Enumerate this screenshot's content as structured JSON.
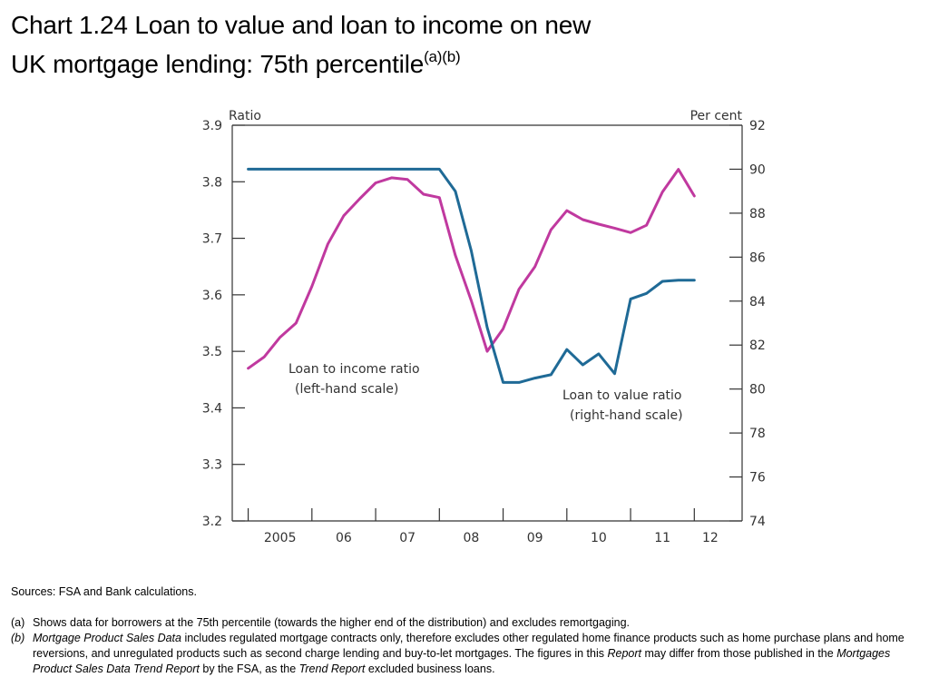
{
  "title": {
    "line1": "Chart 1.24  Loan to value and loan to income on new",
    "line2": "UK mortgage lending:  75th percentile",
    "superscript": "(a)(b)"
  },
  "chart_data": {
    "type": "line",
    "left_axis": {
      "title": "Ratio",
      "ylim": [
        3.2,
        3.9
      ],
      "ticks": [
        "3.2",
        "3.3",
        "3.4",
        "3.5",
        "3.6",
        "3.7",
        "3.8",
        "3.9"
      ]
    },
    "right_axis": {
      "title": "Per cent",
      "ylim": [
        74,
        92
      ],
      "ticks": [
        "74",
        "76",
        "78",
        "80",
        "82",
        "84",
        "86",
        "88",
        "90",
        "92"
      ]
    },
    "x_axis": {
      "range": [
        2004.75,
        2012.75
      ],
      "labels": [
        {
          "x": 2005.5,
          "label": "2005"
        },
        {
          "x": 2006.5,
          "label": "06"
        },
        {
          "x": 2007.5,
          "label": "07"
        },
        {
          "x": 2008.5,
          "label": "08"
        },
        {
          "x": 2009.5,
          "label": "09"
        },
        {
          "x": 2010.5,
          "label": "10"
        },
        {
          "x": 2011.5,
          "label": "11"
        },
        {
          "x": 2012.25,
          "label": "12"
        }
      ],
      "tick_marks": [
        2005,
        2006,
        2007,
        2008,
        2009,
        2010,
        2011,
        2012
      ]
    },
    "grid": false,
    "series": [
      {
        "name": "Loan to income ratio",
        "axis": "left",
        "color": "#c0399f",
        "points": [
          [
            2005.0,
            3.47
          ],
          [
            2005.25,
            3.49
          ],
          [
            2005.5,
            3.525
          ],
          [
            2005.75,
            3.55
          ],
          [
            2006.0,
            3.615
          ],
          [
            2006.25,
            3.69
          ],
          [
            2006.5,
            3.74
          ],
          [
            2006.75,
            3.77
          ],
          [
            2007.0,
            3.798
          ],
          [
            2007.25,
            3.807
          ],
          [
            2007.5,
            3.804
          ],
          [
            2007.75,
            3.778
          ],
          [
            2008.0,
            3.772
          ],
          [
            2008.25,
            3.67
          ],
          [
            2008.5,
            3.59
          ],
          [
            2008.75,
            3.5
          ],
          [
            2009.0,
            3.54
          ],
          [
            2009.25,
            3.61
          ],
          [
            2009.5,
            3.65
          ],
          [
            2009.75,
            3.715
          ],
          [
            2010.0,
            3.749
          ],
          [
            2010.25,
            3.733
          ],
          [
            2010.5,
            3.725
          ],
          [
            2010.75,
            3.718
          ],
          [
            2011.0,
            3.71
          ],
          [
            2011.25,
            3.723
          ],
          [
            2011.5,
            3.782
          ],
          [
            2011.75,
            3.822
          ],
          [
            2012.0,
            3.775
          ]
        ]
      },
      {
        "name": "Loan to value ratio",
        "axis": "right",
        "color": "#1f6a96",
        "points": [
          [
            2005.0,
            90
          ],
          [
            2005.5,
            90
          ],
          [
            2006.0,
            90
          ],
          [
            2006.5,
            90
          ],
          [
            2007.0,
            90
          ],
          [
            2007.5,
            90
          ],
          [
            2007.75,
            90
          ],
          [
            2008.0,
            90
          ],
          [
            2008.25,
            89.0
          ],
          [
            2008.5,
            86.3
          ],
          [
            2008.75,
            82.8
          ],
          [
            2009.0,
            80.3
          ],
          [
            2009.25,
            80.3
          ],
          [
            2009.5,
            80.5
          ],
          [
            2009.75,
            80.65
          ],
          [
            2010.0,
            81.8
          ],
          [
            2010.25,
            81.1
          ],
          [
            2010.5,
            81.6
          ],
          [
            2010.75,
            80.7
          ],
          [
            2011.0,
            84.1
          ],
          [
            2011.25,
            84.35
          ],
          [
            2011.5,
            84.9
          ],
          [
            2011.75,
            84.95
          ],
          [
            2012.0,
            84.95
          ]
        ]
      }
    ],
    "annotations": {
      "lti_line1": "Loan to income ratio",
      "lti_line2": "(left-hand scale)",
      "ltv_line1": "Loan to value ratio",
      "ltv_line2": "(right-hand scale)"
    }
  },
  "footer": {
    "sources": "Sources:  FSA and Bank calculations.",
    "note_a_tag": "(a)",
    "note_a_text": "Shows data for borrowers at the 75th percentile (towards the higher end of the distribution) and excludes remortgaging.",
    "note_b_tag": "(b)",
    "note_b_italic1": "Mortgage Product Sales Data",
    "note_b_text1": " includes regulated mortgage contracts only, therefore excludes other regulated home finance products such as home purchase plans and home reversions, and unregulated products such as second charge lending and buy-to-let mortgages.  The figures in this ",
    "note_b_italic2": "Report",
    "note_b_text2": " may differ from those published in the ",
    "note_b_italic3": "Mortgages Product Sales Data Trend Report",
    "note_b_text3": " by the FSA, as the ",
    "note_b_italic4": "Trend Report",
    "note_b_text4": " excluded business loans."
  }
}
